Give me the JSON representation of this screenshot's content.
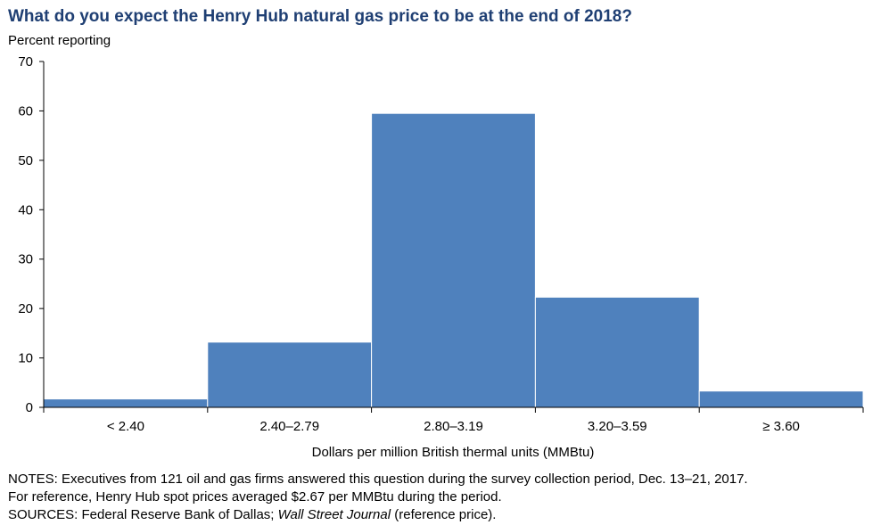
{
  "title": "What do you expect the Henry Hub natural gas price to be at the end of 2018?",
  "subtitle": "Percent reporting",
  "notes": {
    "line1": "NOTES: Executives from 121 oil and gas firms answered this question during the survey collection period, Dec. 13–21, 2017.",
    "line2": "For reference, Henry Hub spot prices averaged $2.67 per MMBtu during the period.",
    "line3_prefix": "SOURCES: Federal Reserve Bank of Dallas;",
    "line3_italic": "Wall Street Journal",
    "line3_suffix": "(reference price)."
  },
  "colors": {
    "bar": "#4f81bd",
    "title": "#1f3f73",
    "axis": "#000000"
  },
  "chart_data": {
    "type": "bar",
    "title": "What do you expect the Henry Hub natural gas price to be at the end of 2018?",
    "ylabel": "Percent reporting",
    "xlabel": "Dollars per million British thermal units (MMBtu)",
    "categories": [
      "< 2.40",
      "2.40–2.79",
      "2.80–3.19",
      "3.20–3.59",
      "≥ 3.60"
    ],
    "values": [
      1.7,
      13.2,
      59.5,
      22.3,
      3.3
    ],
    "ylim": [
      0,
      70
    ],
    "yticks": [
      0,
      10,
      20,
      30,
      40,
      50,
      60,
      70
    ],
    "grid": false,
    "legend": "none"
  }
}
